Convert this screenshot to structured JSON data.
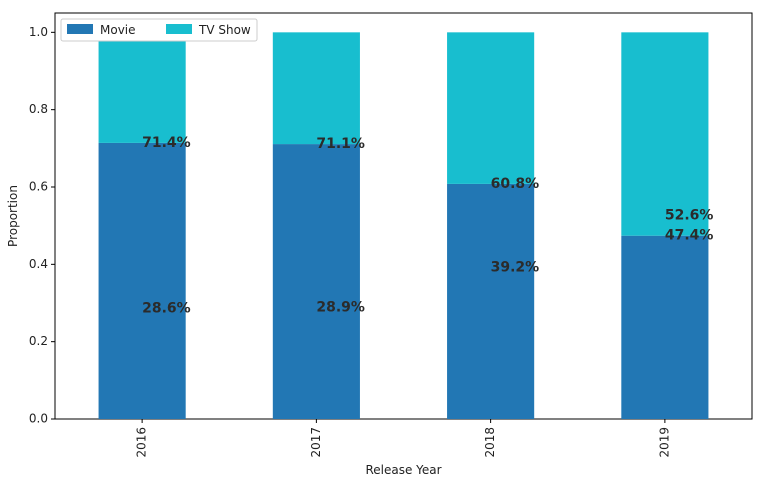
{
  "chart_data": {
    "type": "bar",
    "stacked": true,
    "categories": [
      "2016",
      "2017",
      "2018",
      "2019"
    ],
    "series": [
      {
        "name": "Movie",
        "values": [
          0.714,
          0.711,
          0.608,
          0.474
        ],
        "color": "#2277b4"
      },
      {
        "name": "TV Show",
        "values": [
          0.286,
          0.289,
          0.392,
          0.526
        ],
        "color": "#18becf"
      }
    ],
    "data_labels": [
      [
        "71.4%",
        "28.6%"
      ],
      [
        "71.1%",
        "28.9%"
      ],
      [
        "60.8%",
        "39.2%"
      ],
      [
        "47.4%",
        "52.6%"
      ]
    ],
    "xlabel": "Release Year",
    "ylabel": "Proportion",
    "ylim": [
      0,
      1.05
    ],
    "yticks": [
      "0.0",
      "0.2",
      "0.4",
      "0.6",
      "0.8",
      "1.0"
    ],
    "legend_placement": "top-left",
    "grid": false
  }
}
